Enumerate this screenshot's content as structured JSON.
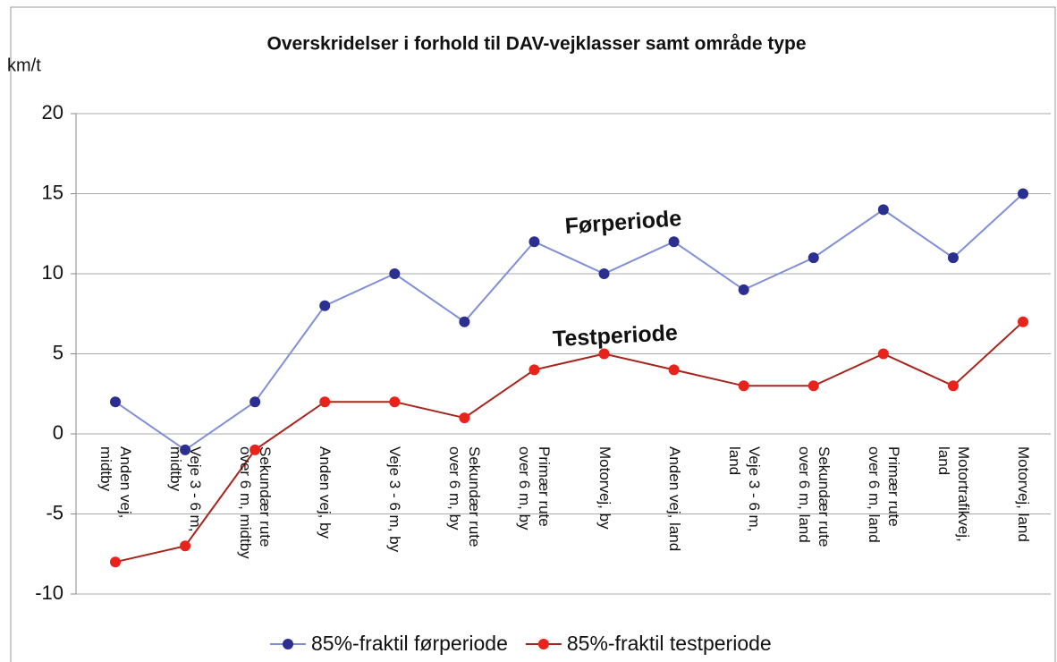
{
  "chart_data": {
    "type": "line",
    "title": "Overskridelser i forhold til DAV-vejklasser samt område type",
    "y_label": "km/t",
    "categories": [
      "Anden vej,\nmidtby",
      "Veje 3 - 6 m,\nmidtby",
      "Sekundær rute\nover 6 m, midtby",
      "Anden vej, by",
      "Veje 3 - 6 m, by",
      "Sekundær rute\nover 6 m, by",
      "Primær rute\nover 6 m, by",
      "Motorvej, by",
      "Anden vej, land",
      "Veje 3 - 6 m,\nland",
      "Sekundær rute\nover 6 m, land",
      "Primær rute\nover 6 m, land",
      "Motortrafikvej,\nland",
      "Motorvej, land"
    ],
    "series": [
      {
        "name": "85%-fraktil førperiode",
        "color": "#2b2f8f",
        "line_color": "#7f8fd8",
        "annotation": "Førperiode",
        "values": [
          2,
          -1,
          2,
          8,
          10,
          7,
          12,
          10,
          12,
          9,
          11,
          14,
          11,
          15
        ]
      },
      {
        "name": "85%-fraktil testperiode",
        "color": "#e8231c",
        "line_color": "#a8251e",
        "annotation": "Testperiode",
        "values": [
          -8,
          -7,
          -1,
          2,
          2,
          1,
          4,
          5,
          4,
          3,
          3,
          5,
          3,
          7
        ]
      }
    ],
    "ylim": [
      -10,
      20
    ],
    "yticks": [
      -10,
      -5,
      0,
      5,
      10,
      15,
      20
    ],
    "grid": true,
    "legend": "bottom"
  }
}
